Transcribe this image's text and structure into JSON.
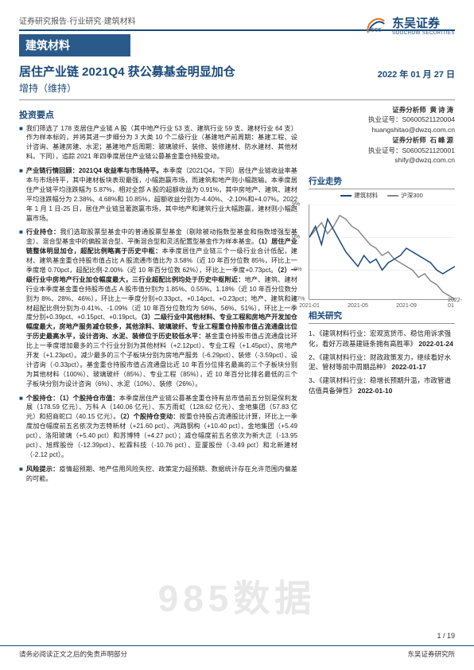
{
  "header": {
    "breadcrumb": "证券研究报告·行业研究·建筑材料",
    "banner": "建筑材料",
    "logo_cn": "东吴证券",
    "logo_en": "SOOCHOW SECURITIES"
  },
  "title": {
    "main": "居住产业链 2021Q4 获公募基金明显加仓",
    "rating": "增持（维持）",
    "date": "2022 年 01 月 27 日"
  },
  "analysts": [
    {
      "role": "证券分析师",
      "name": "黄诗涛",
      "license_label": "执业证号：",
      "license": "S0600521120004",
      "email": "huangshitao@dwzq.com.cn"
    },
    {
      "role": "证券分析师",
      "name": "石峰源",
      "license_label": "执业证号：",
      "license": "S0600521120001",
      "email": "shify@dwzq.com.cn"
    }
  ],
  "left": {
    "heading": "投资要点",
    "bullets": [
      "我们筛选了 178 支居住产业链 A 股（其中地产行业 53 支、建筑行业 59 支、建材行业 64 支）作为样本标的，并将其进一步细分为 3 大类 10 个二级行业（基建地产前周期：基建工程、设计咨询、基建房建、水泥；基建地产后周期：玻璃玻纤、装修、装修建材、防水建材、其他材料。下同），追踪 2021 年四季度居住产业链公募基金重仓持股变动。",
      "<b>产业链行情回顾：2021Q4 收益率与市场持平。</b>本季度（2021Q4，下同）居住产业链收益率基本与市场持平，其中建材板块表现最强，小幅跑赢市场，而建筑和地产则小幅跑输。本季度居住产业链平均涨跌幅为 5.87%，相对全部 A 股的超额收益为 0.91%，其中房地产、建筑、建材平均涨跌幅分为 2.38%、4.68%和 10.85%，超额收益分别为-4.40%、-2.10%和+4.07%。2022 年 1 月 1 日-25 日，居住产业链显著跑赢市场，其中地产和建筑行业大幅跑赢，建材则小幅跑赢市场。",
      "<b>行业持仓：</b>我们选取股票型基金中的普通股票型基金（剔除被动指数型基金和指数增强型基金）、混合型基金中的偏股混合型、平衡混合型和灵活配置型基金作为样本基金。<b>（1）居住产业链整体明显加仓，超配比例略高于历史中枢：</b>本季度居住产业链三个一级行业合计低配，建材、建筑基金重仓持股市值占比 A 股流通市值比为 3.58%（近 10 年百分位数 85%，环比上一季度增 0.70pct，超配比例-2.00%（近 10 年百分位数 62%），环比上一季度+0.73pct。<b>（2）一级行业中房地产行业加仓幅度最大，三行业超配比例均处于历史中枢附近：</b>地产、建筑、建材行业本季度基金重仓持股市值占 A 股市值分别为 1.85%、0.55%、1.18%（近 10 年百分位数分别为 8%、28%、46%），环比上一季度分别+0.33pct、+0.14pct、+0.23pct；地产、建筑和建材超配比例分别为-0.41%、-1.09%（近 10 年百分位数均为 56%、56%、51%），环比上一季度分别+0.39pct、+0.15pct、+0.19pct。<b>（3）二级行业中其他材料、专业工程和房地产开发加仓幅度最大，房地产服务减仓较多，其他涂料、玻璃玻纤、专业工程重仓持股市值占流通盘比位于历史最高水平，设计咨询、水泥、装修位于历史较低水平：</b>基金重仓持股市值占流通盘比环比上一季度增加最多的三个行业分别为其他材料（+2.12pct）、专业工程（+1.45pct）、房地产开发（+1.23pct）。减少最多的三个子板块分别为房地产服务（-6.29pct）、装修（-3.59pct）、设计咨询（-0.33pct）。基金重仓持股市值占流通盘比近 10 年百分位排名最高的三个子板块分别为其他材料（100%）、玻璃玻纤（85%）、专业工程（85%），近 10 年百分比排名最低的三个子板块分别为设计咨询（6%）、水泥（10%）、装修（26%）。",
      "<b>个股持仓：（1）个股持仓市值：</b>本季度居住产业链公募基金重仓持有总市值前五分别是保利发展（178.59 亿元）、万科 A（140.06 亿元）、东方雨虹（128.62 亿元）、金地集团（57.83 亿元）和招商蛇口（40.15 亿元）。<b>（2）个股持仓变动：</b>按重仓持股占流通股比计算，环比上一季度加仓幅度前五名依次为志特新材（+21.60 pct）、鸿路钢构（+10.40 pct）、金地集团（+5.49 pct）、洛阳玻璃（+5.40 pct）和苏博特（+4.27 pct）；减仓幅度前五名依次为新大正（-13.95 pct）、旭辉股份（-12.39pct）、松霖科技（-10.76 pct）、亚厦股份（-3.49 pct）和北新建材（-2.12 pct）。",
      "<b>风险提示：</b>疫情超预期、地产信用风险失控、政策定力超预期、数据统计存在允许范围内偏差的可能。"
    ]
  },
  "chart": {
    "heading": "行业走势",
    "series1_label": "建筑材料",
    "series2_label": "沪深300",
    "series1_color": "#1a4a7a",
    "series2_color": "#888888",
    "y_ticks": [
      "9%",
      "0%",
      "-9%",
      "-17%"
    ],
    "x_ticks": [
      "2021-01",
      "2021-05",
      "2021-09",
      "2022-01"
    ],
    "series1_points": [
      0,
      3,
      -2,
      5,
      2,
      -1,
      -4,
      -6,
      -8,
      -5,
      -7,
      -6,
      -9,
      -7,
      -6,
      -5,
      -3,
      -4,
      -5,
      -6,
      -7,
      -9,
      -10,
      -9,
      -8
    ],
    "series2_points": [
      0,
      2,
      4,
      1,
      3,
      6,
      5,
      3,
      2,
      0,
      -2,
      -3,
      -5,
      -4,
      -6,
      -7,
      -8,
      -9,
      -11,
      -10,
      -12,
      -13,
      -15,
      -16,
      -17
    ]
  },
  "related": {
    "heading": "相关研究",
    "items": [
      {
        "text": "1、《建筑材料行业：宏观宽货币、稳信用诉求强化，看好万政基建链条拥有高胜率》",
        "date": "2022-01-24"
      },
      {
        "text": "2、《建筑材料行业：财政政策发力，继续看好水泥、管材等前中周期品种》",
        "date": "2022-01-17"
      },
      {
        "text": "3、《建筑材料行业：稳增长预期升温，市政管道估值具备弹性》",
        "date": "2022-01-10"
      }
    ]
  },
  "watermark": "985数据",
  "page_number": "1 / 19",
  "footer_left": "请务必阅读正文之后的免责声明部分",
  "footer_right_src": "东吴证券研究所"
}
